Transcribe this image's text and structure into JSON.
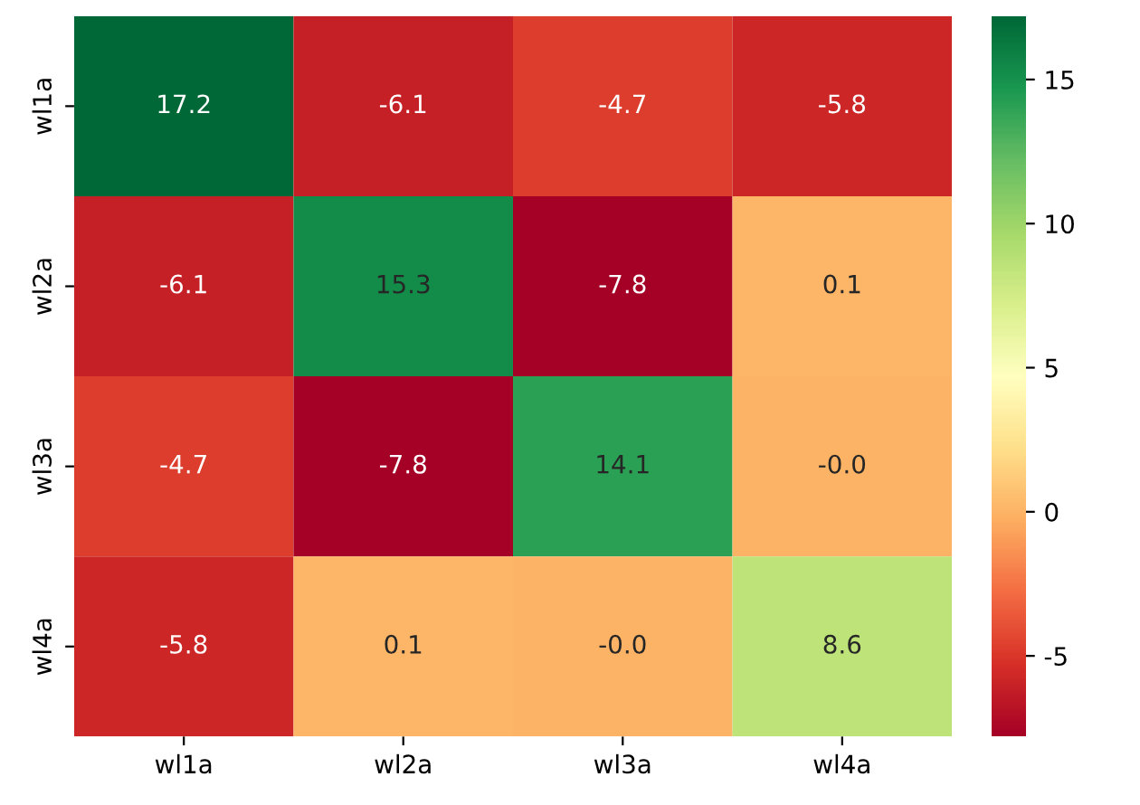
{
  "chart_data": {
    "type": "heatmap",
    "categories": [
      "wl1a",
      "wl2a",
      "wl3a",
      "wl4a"
    ],
    "y_categories": [
      "wl1a",
      "wl2a",
      "wl3a",
      "wl4a"
    ],
    "cells": [
      [
        17.2,
        -6.1,
        -4.7,
        -5.8
      ],
      [
        -6.1,
        15.3,
        -7.8,
        0.1
      ],
      [
        -4.7,
        -7.8,
        14.1,
        -0.0
      ],
      [
        -5.8,
        0.1,
        -0.0,
        8.6
      ]
    ],
    "cell_labels": [
      [
        "17.2",
        "-6.1",
        "-4.7",
        "-5.8"
      ],
      [
        "-6.1",
        "15.3",
        "-7.8",
        "0.1"
      ],
      [
        "-4.7",
        "-7.8",
        "14.1",
        "-0.0"
      ],
      [
        "-5.8",
        "0.1",
        "-0.0",
        "8.6"
      ]
    ],
    "clim": [
      -7.8,
      17.2
    ],
    "cticks": [
      -5,
      0,
      5,
      10,
      15
    ]
  }
}
